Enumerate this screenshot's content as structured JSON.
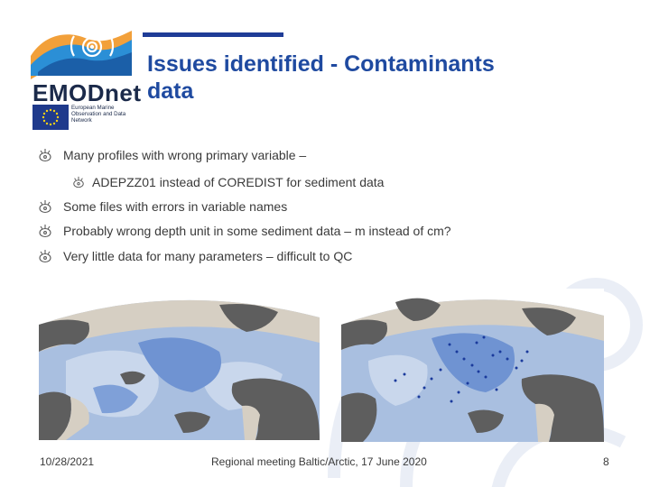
{
  "logo": {
    "brand": "EMODnet",
    "subtitle": "European Marine Observation and Data Network",
    "icon": "emodnet-wave-logo",
    "colors": {
      "navy": "#1b2a4a",
      "blue": "#2b8fd6",
      "orange": "#f2a03a"
    }
  },
  "title": {
    "line1": "Issues identified - Contaminants",
    "line2": "data",
    "color": "#1f4aa0"
  },
  "bullets": [
    {
      "text": "Many profiles with wrong primary variable –",
      "level": 1,
      "icon": "bullet-glyph-icon"
    },
    {
      "text": "ADEPZZ01 instead of COREDIST for sediment data",
      "level": 2,
      "icon": "bullet-glyph-icon"
    },
    {
      "text": "Some files with errors in variable names",
      "level": 1,
      "icon": "bullet-glyph-icon"
    },
    {
      "text": "Probably wrong depth unit in some sediment data – m instead of cm?",
      "level": 1,
      "icon": "bullet-glyph-icon"
    },
    {
      "text": "Very little data for many parameters – difficult to QC",
      "level": 1,
      "icon": "bullet-glyph-icon"
    }
  ],
  "maps": [
    {
      "name": "arctic-bathymetry-map-left"
    },
    {
      "name": "arctic-bathymetry-map-right-with-stations"
    }
  ],
  "footer": {
    "date": "10/28/2021",
    "meeting": "Regional meeting Baltic/Arctic, 17 June 2020",
    "page": "8"
  }
}
